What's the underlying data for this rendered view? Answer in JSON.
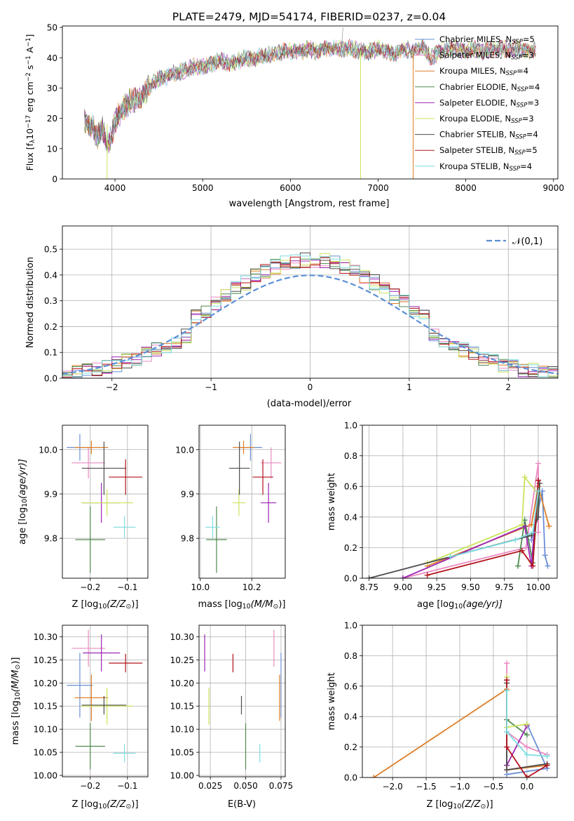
{
  "colors": {
    "chabrier_miles": "#6b8fd6",
    "salpeter_miles": "#e98bc2",
    "kroupa_miles": "#de7f28",
    "chabrier_elodie": "#4f8a4f",
    "salpeter_elodie": "#9b24b4",
    "kroupa_elodie": "#c9e45a",
    "chabrier_stelib": "#4d4d4d",
    "salpeter_stelib": "#b3131b",
    "kroupa_stelib": "#7fdde0",
    "gauss": "#5b8fd6",
    "grid": "#b0b0b0"
  },
  "chart_data": [
    {
      "id": "spectrum",
      "type": "line",
      "title": "PLATE=2479, MJD=54174, FIBERID=0237, z=0.04",
      "xlabel": "wavelength [Angstrom, rest frame]",
      "ylabel": "Flux [f",
      "ylabel_sub": "λ",
      "ylabel_mid": "10",
      "ylabel_sup1": "−17",
      "ylabel_mid2": " erg cm",
      "ylabel_sup2": "−2",
      "ylabel_mid3": " s",
      "ylabel_sup3": "−1",
      "ylabel_mid4": " A",
      "ylabel_sup4": "−1",
      "ylabel_end": "]",
      "xlim": [
        3400,
        9050
      ],
      "ylim": [
        0,
        50.5
      ],
      "xticks": [
        "4000",
        "5000",
        "6000",
        "7000",
        "8000",
        "9000"
      ],
      "xtick_values": [
        4000,
        5000,
        6000,
        7000,
        8000,
        9000
      ],
      "yticks": [
        "0",
        "10",
        "20",
        "30",
        "40",
        "50"
      ],
      "ytick_values": [
        0,
        10,
        20,
        30,
        40,
        50
      ],
      "grid": false,
      "legend_position": "top-right",
      "spectrum_x": [
        3650,
        3700,
        3750,
        3800,
        3850,
        3900,
        3950,
        4000,
        4100,
        4200,
        4300,
        4400,
        4500,
        4600,
        4700,
        4800,
        4900,
        5000,
        5100,
        5200,
        5300,
        5400,
        5500,
        5600,
        5700,
        5800,
        5900,
        6000,
        6100,
        6200,
        6300,
        6400,
        6500,
        6600,
        6700,
        6800,
        6900,
        7000,
        7100,
        7200,
        7300,
        7400,
        7500,
        7600,
        7700,
        7800,
        7900,
        8000,
        8100,
        8200,
        8300,
        8400,
        8500,
        8600,
        8700,
        8800
      ],
      "spectrum_y": [
        20,
        18,
        17,
        14,
        17,
        12,
        13,
        19,
        24,
        26,
        27,
        31,
        33,
        34,
        35,
        36,
        37,
        37,
        38,
        39,
        38,
        39,
        40,
        40,
        41,
        41,
        42,
        42,
        42,
        43,
        42,
        43,
        43,
        43,
        43,
        42,
        42,
        43,
        42,
        41,
        43,
        42,
        44,
        40,
        42,
        43,
        43,
        42,
        43,
        42,
        43,
        43,
        43,
        43,
        42,
        43
      ],
      "series": [
        {
          "name": "Chabrier MILES, N",
          "sub": "SSP",
          "tail": "=5",
          "color_key": "chabrier_miles"
        },
        {
          "name": "Salpeter MILES, N",
          "sub": "SSP",
          "tail": "=3",
          "color_key": "salpeter_miles"
        },
        {
          "name": "Kroupa MILES, N",
          "sub": "SSP",
          "tail": "=4",
          "color_key": "kroupa_miles"
        },
        {
          "name": "Chabrier ELODIE, N",
          "sub": "SSP",
          "tail": "=4",
          "color_key": "chabrier_elodie"
        },
        {
          "name": "Salpeter ELODIE, N",
          "sub": "SSP",
          "tail": "=3",
          "color_key": "salpeter_elodie"
        },
        {
          "name": "Kroupa ELODIE, N",
          "sub": "SSP",
          "tail": "=3",
          "color_key": "kroupa_elodie"
        },
        {
          "name": "Chabrier STELIB, N",
          "sub": "SSP",
          "tail": "=4",
          "color_key": "chabrier_stelib"
        },
        {
          "name": "Salpeter STELIB, N",
          "sub": "SSP",
          "tail": "=5",
          "color_key": "salpeter_stelib"
        },
        {
          "name": "Kroupa STELIB, N",
          "sub": "SSP",
          "tail": "=4",
          "color_key": "kroupa_stelib"
        }
      ]
    },
    {
      "id": "residuals",
      "type": "histogram",
      "xlabel": "(data-model)/error",
      "ylabel": "Normed distribution",
      "xlim": [
        -2.5,
        2.5
      ],
      "ylim": [
        0,
        0.59
      ],
      "xticks": [
        "−2",
        "−1",
        "0",
        "1",
        "2"
      ],
      "xtick_values": [
        -2,
        -1,
        0,
        1,
        2
      ],
      "yticks": [
        "0.0",
        "0.1",
        "0.2",
        "0.3",
        "0.4",
        "0.5"
      ],
      "ytick_values": [
        0,
        0.1,
        0.2,
        0.3,
        0.4,
        0.5
      ],
      "grid": true,
      "legend_label": "𝒩(0,1)",
      "legend_position": "top-right",
      "bin_width": 0.1
    },
    {
      "id": "age_vs_Z",
      "type": "errorbar",
      "xlabel": "Z [log",
      "xlabel_sub": "10",
      "xlabel_end": "(Z/Z",
      "xlabel_sub2": "⊙",
      "xlabel_end2": ")]",
      "ylabel": "age  [log",
      "ylabel_sub": "10",
      "ylabel_end": "(age/yr)]",
      "xlim": [
        -0.275,
        -0.045
      ],
      "ylim": [
        9.71,
        10.055
      ],
      "xticks": [
        "−0.2",
        "−0.1"
      ],
      "xtick_values": [
        -0.2,
        -0.1
      ],
      "yticks": [
        "9.8",
        "9.9",
        "10.0"
      ],
      "ytick_values": [
        9.8,
        9.9,
        10.0
      ],
      "grid": true
    },
    {
      "id": "age_vs_mass",
      "type": "errorbar",
      "xlabel": "mass [log",
      "xlabel_sub": "10",
      "xlabel_end": "(M/M",
      "xlabel_sub2": "⊙",
      "xlabel_end2": ")]",
      "xlim": [
        9.995,
        10.33
      ],
      "ylim": [
        9.71,
        10.055
      ],
      "xticks": [
        "10.0",
        "10.2"
      ],
      "xtick_values": [
        10.0,
        10.2
      ],
      "yticks": [
        "9.8",
        "9.9",
        "10.0"
      ],
      "ytick_values": [
        9.8,
        9.9,
        10.0
      ],
      "grid": true
    },
    {
      "id": "weight_vs_age",
      "type": "line",
      "xlabel": "age  [log",
      "xlabel_sub": "10",
      "xlabel_end": "(age/yr)]",
      "ylabel": "mass weight",
      "xlim": [
        8.7,
        10.14
      ],
      "ylim": [
        0,
        1.0
      ],
      "xticks": [
        "8.75",
        "9.00",
        "9.25",
        "9.50",
        "9.75",
        "10.00"
      ],
      "xtick_values": [
        8.75,
        9.0,
        9.25,
        9.5,
        9.75,
        10.0
      ],
      "yticks": [
        "0.0",
        "0.2",
        "0.4",
        "0.6",
        "0.8",
        "1.0"
      ],
      "ytick_values": [
        0,
        0.2,
        0.4,
        0.6,
        0.8,
        1.0
      ],
      "grid": true
    },
    {
      "id": "mass_vs_Z",
      "type": "errorbar",
      "xlabel": "Z [log",
      "xlabel_sub": "10",
      "xlabel_end": "(Z/Z",
      "xlabel_sub2": "⊙",
      "xlabel_end2": ")]",
      "ylabel": "mass [log",
      "ylabel_sub": "10",
      "ylabel_end": "(M/M",
      "ylabel_sub2": "⊙",
      "ylabel_end2": ")]",
      "xlim": [
        -0.275,
        -0.045
      ],
      "ylim": [
        9.997,
        10.325
      ],
      "xticks": [
        "−0.2",
        "−0.1"
      ],
      "xtick_values": [
        -0.2,
        -0.1
      ],
      "yticks": [
        "10.00",
        "10.05",
        "10.10",
        "10.15",
        "10.20",
        "10.25",
        "10.30"
      ],
      "ytick_values": [
        10.0,
        10.05,
        10.1,
        10.15,
        10.2,
        10.25,
        10.3
      ],
      "grid": true
    },
    {
      "id": "mass_vs_EBV",
      "type": "errorbar",
      "xlabel": "E(B-V)",
      "xlim": [
        0.017,
        0.078
      ],
      "ylim": [
        9.997,
        10.325
      ],
      "xticks": [
        "0.025",
        "0.050",
        "0.075"
      ],
      "xtick_values": [
        0.025,
        0.05,
        0.075
      ],
      "yticks": [
        "10.00",
        "10.05",
        "10.10",
        "10.15",
        "10.20",
        "10.25",
        "10.30"
      ],
      "ytick_values": [
        10.0,
        10.05,
        10.1,
        10.15,
        10.2,
        10.25,
        10.3
      ],
      "grid": true
    },
    {
      "id": "weight_vs_Z",
      "type": "line",
      "xlabel": "Z [log",
      "xlabel_sub": "10",
      "xlabel_end": "(Z/Z",
      "xlabel_sub2": "⊙",
      "xlabel_end2": ")]",
      "ylabel": "mass weight",
      "xlim": [
        -2.45,
        0.45
      ],
      "ylim": [
        0,
        1.0
      ],
      "xticks": [
        "−2.0",
        "−1.5",
        "−1.0",
        "−0.5",
        "0.0"
      ],
      "xtick_values": [
        -2.0,
        -1.5,
        -1.0,
        -0.5,
        0.0
      ],
      "yticks": [
        "0.0",
        "0.2",
        "0.4",
        "0.6",
        "0.8",
        "1.0"
      ],
      "ytick_values": [
        0,
        0.2,
        0.4,
        0.6,
        0.8,
        1.0
      ],
      "grid": true
    }
  ],
  "model_points": [
    {
      "key": "chabrier_miles",
      "Z": -0.228,
      "Zerr": 0.035,
      "age": 10.005,
      "ageErr": 0.03,
      "mass": 10.195,
      "massErr": 0.045,
      "ebv": 0.075,
      "ebvErr": 0.0,
      "merr": 0.07
    },
    {
      "key": "salpeter_miles",
      "Z": -0.205,
      "Zerr": 0.045,
      "age": 9.97,
      "ageErr": 0.035,
      "mass": 10.275,
      "massErr": 0.04,
      "ebv": 0.07,
      "merr": 0.04
    },
    {
      "key": "kroupa_miles",
      "Z": -0.197,
      "Zerr": 0.045,
      "age": 10.005,
      "ageErr": 0.015,
      "mass": 10.168,
      "massErr": 0.042,
      "ebv": 0.074,
      "merr": 0.05
    },
    {
      "key": "chabrier_elodie",
      "Z": -0.2,
      "Zerr": 0.04,
      "age": 9.797,
      "ageErr": 0.075,
      "mass": 10.063,
      "massErr": 0.04,
      "ebv": 0.05,
      "merr": 0.05
    },
    {
      "key": "salpeter_elodie",
      "Z": -0.17,
      "Zerr": 0.05,
      "age": 9.88,
      "ageErr": 0.045,
      "mass": 10.265,
      "massErr": 0.03,
      "ebv": 0.021,
      "merr": 0.04
    },
    {
      "key": "kroupa_elodie",
      "Z": -0.155,
      "Zerr": 0.07,
      "age": 9.88,
      "ageErr": 0.03,
      "mass": 10.15,
      "massErr": 0.025,
      "ebv": 0.024,
      "merr": 0.04
    },
    {
      "key": "chabrier_stelib",
      "Z": -0.163,
      "Zerr": 0.06,
      "age": 9.958,
      "ageErr": 0.06,
      "mass": 10.152,
      "massErr": 0.04,
      "ebv": 0.047,
      "merr": 0.02
    },
    {
      "key": "salpeter_stelib",
      "Z": -0.105,
      "Zerr": 0.045,
      "age": 9.938,
      "ageErr": 0.04,
      "mass": 10.243,
      "massErr": 0.04,
      "ebv": 0.041,
      "merr": 0.02
    },
    {
      "key": "kroupa_stelib",
      "Z": -0.108,
      "Zerr": 0.03,
      "age": 9.825,
      "ageErr": 0.025,
      "mass": 10.048,
      "massErr": 0.028,
      "ebv": 0.06,
      "merr": 0.02
    }
  ],
  "weight_age_lines": [
    {
      "key": "chabrier_miles",
      "ages": [
        9.95,
        10.03,
        10.05,
        10.07
      ],
      "w": [
        0.25,
        0.57,
        0.15,
        0.08
      ]
    },
    {
      "key": "salpeter_miles",
      "ages": [
        9.0,
        9.91,
        10.0,
        10.0
      ],
      "w": [
        0.0,
        0.2,
        0.75,
        0.3
      ]
    },
    {
      "key": "kroupa_miles",
      "ages": [
        9.18,
        9.95,
        10.0,
        10.08
      ],
      "w": [
        0.08,
        0.35,
        0.6,
        0.34
      ]
    },
    {
      "key": "chabrier_elodie",
      "ages": [
        9.85,
        9.9,
        9.96,
        10.0
      ],
      "w": [
        0.08,
        0.38,
        0.1,
        0.55
      ]
    },
    {
      "key": "salpeter_elodie",
      "ages": [
        9.0,
        9.9,
        9.95,
        10.0
      ],
      "w": [
        0.0,
        0.34,
        0.08,
        0.64
      ]
    },
    {
      "key": "kroupa_elodie",
      "ages": [
        9.18,
        9.88,
        9.9,
        10.0
      ],
      "w": [
        0.1,
        0.35,
        0.66,
        0.55
      ]
    },
    {
      "key": "chabrier_stelib",
      "ages": [
        8.75,
        9.95,
        10.0,
        10.01
      ],
      "w": [
        0.0,
        0.28,
        0.4,
        0.62
      ]
    },
    {
      "key": "salpeter_stelib",
      "ages": [
        9.18,
        9.88,
        9.96,
        10.0
      ],
      "w": [
        0.02,
        0.18,
        0.08,
        0.64
      ]
    },
    {
      "key": "kroupa_stelib",
      "ages": [
        9.35,
        9.83,
        9.96,
        10.0
      ],
      "w": [
        0.14,
        0.25,
        0.3,
        0.57
      ]
    }
  ],
  "weight_Z_lines": [
    {
      "key": "kroupa_miles",
      "Z": [
        -2.28,
        -0.3,
        -0.3,
        0.3
      ],
      "w": [
        0.0,
        0.58,
        0.05,
        0.08
      ]
    },
    {
      "key": "chabrier_miles",
      "Z": [
        -0.3,
        0.3,
        0.0
      ],
      "w": [
        0.02,
        0.06,
        0.35
      ]
    },
    {
      "key": "salpeter_miles",
      "Z": [
        -0.3,
        -0.3,
        0.0,
        0.3
      ],
      "w": [
        0.75,
        0.3,
        0.2,
        0.15
      ]
    },
    {
      "key": "chabrier_elodie",
      "Z": [
        -0.3,
        -0.3,
        0.0
      ],
      "w": [
        0.08,
        0.38,
        0.28
      ]
    },
    {
      "key": "salpeter_elodie",
      "Z": [
        -0.3,
        -0.3,
        0.0
      ],
      "w": [
        0.64,
        0.08,
        0.34
      ]
    },
    {
      "key": "kroupa_elodie",
      "Z": [
        -0.3,
        -0.3,
        0.0
      ],
      "w": [
        0.66,
        0.33,
        0.35
      ]
    },
    {
      "key": "chabrier_stelib",
      "Z": [
        -0.3,
        -0.3,
        0.3
      ],
      "w": [
        0.62,
        0.05,
        0.09
      ]
    },
    {
      "key": "salpeter_stelib",
      "Z": [
        -0.3,
        -0.3,
        0.0,
        0.3
      ],
      "w": [
        0.64,
        0.2,
        0.0,
        0.08
      ]
    },
    {
      "key": "kroupa_stelib",
      "Z": [
        -0.3,
        -0.3,
        0.0,
        0.3
      ],
      "w": [
        0.57,
        0.3,
        0.15,
        0.14
      ]
    }
  ]
}
